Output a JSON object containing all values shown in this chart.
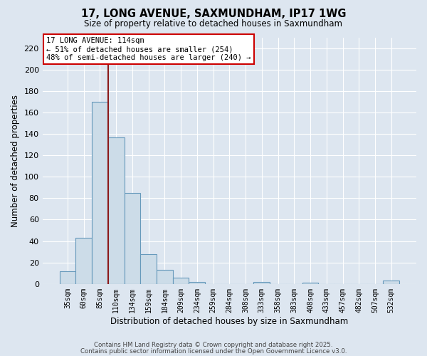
{
  "title": "17, LONG AVENUE, SAXMUNDHAM, IP17 1WG",
  "subtitle": "Size of property relative to detached houses in Saxmundham",
  "xlabel": "Distribution of detached houses by size in Saxmundham",
  "ylabel": "Number of detached properties",
  "bar_labels": [
    "35sqm",
    "60sqm",
    "85sqm",
    "110sqm",
    "134sqm",
    "159sqm",
    "184sqm",
    "209sqm",
    "234sqm",
    "259sqm",
    "284sqm",
    "308sqm",
    "333sqm",
    "358sqm",
    "383sqm",
    "408sqm",
    "433sqm",
    "457sqm",
    "482sqm",
    "507sqm",
    "532sqm"
  ],
  "bar_values": [
    12,
    43,
    170,
    137,
    85,
    28,
    13,
    6,
    2,
    0,
    0,
    0,
    2,
    0,
    0,
    1,
    0,
    0,
    0,
    0,
    3
  ],
  "bar_color": "#ccdce8",
  "bar_edge_color": "#6699bb",
  "ylim": [
    0,
    230
  ],
  "yticks": [
    0,
    20,
    40,
    60,
    80,
    100,
    120,
    140,
    160,
    180,
    200,
    220
  ],
  "vline_x": 3.5,
  "vline_color": "#8b1a1a",
  "annotation_title": "17 LONG AVENUE: 114sqm",
  "annotation_line1": "← 51% of detached houses are smaller (254)",
  "annotation_line2": "48% of semi-detached houses are larger (240) →",
  "annotation_box_color": "#ffffff",
  "annotation_box_edge": "#cc0000",
  "footer1": "Contains HM Land Registry data © Crown copyright and database right 2025.",
  "footer2": "Contains public sector information licensed under the Open Government Licence v3.0.",
  "background_color": "#dde6f0",
  "plot_background": "#dde6f0",
  "grid_color": "#ffffff"
}
